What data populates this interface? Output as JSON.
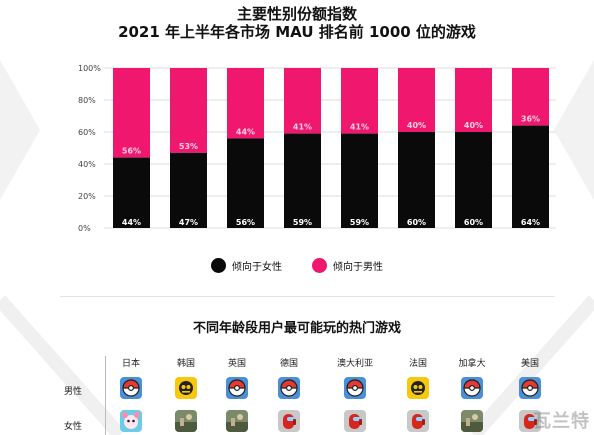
{
  "title_line1": "主要性别份额指数",
  "title_line2": "2021 年上半年各市场 MAU 排名前 1000 位的游戏",
  "chart_data": {
    "type": "bar",
    "stacked": true,
    "categories": [
      "",
      "",
      "",
      "",
      "",
      "",
      "",
      ""
    ],
    "ylim": [
      0,
      100
    ],
    "yticks": [
      "0%",
      "20%",
      "40%",
      "60%",
      "80%",
      "100%"
    ],
    "series": [
      {
        "name": "倾向于女性",
        "color": "#0a0a0a",
        "values": [
          44,
          47,
          56,
          59,
          59,
          60,
          60,
          64
        ],
        "labels": [
          "44%",
          "47%",
          "56%",
          "59%",
          "59%",
          "60%",
          "60%",
          "64%"
        ]
      },
      {
        "name": "倾向于男性",
        "color": "#f0176e",
        "values": [
          56,
          53,
          44,
          41,
          41,
          40,
          40,
          36
        ],
        "labels": [
          "56%",
          "53%",
          "44%",
          "41%",
          "41%",
          "40%",
          "40%",
          "36%"
        ]
      }
    ],
    "legend_position": "bottom",
    "grid": true
  },
  "legend": [
    {
      "label": "倾向于女性",
      "color": "#0a0a0a"
    },
    {
      "label": "倾向于男性",
      "color": "#f0176e"
    }
  ],
  "subtitle": "不同年龄段用户最可能玩的热门游戏",
  "countries": [
    "日本",
    "韩国",
    "英国",
    "德国",
    "澳大利亚",
    "法国",
    "加拿大",
    "美国"
  ],
  "row_labels": [
    "男性",
    "女性"
  ],
  "game_icons": {
    "male": [
      "pokeball-icon",
      "brawl-stars-icon",
      "pokeball-icon",
      "pokeball-icon",
      "pokeball-icon",
      "brawl-stars-icon",
      "pokeball-icon",
      "pokeball-icon"
    ],
    "female": [
      "cartoon-icon",
      "photo-game-icon",
      "photo-game-icon",
      "among-us-icon",
      "among-us-icon",
      "among-us-icon",
      "photo-game-icon",
      "among-us-icon"
    ]
  },
  "watermark": "瓦兰特"
}
